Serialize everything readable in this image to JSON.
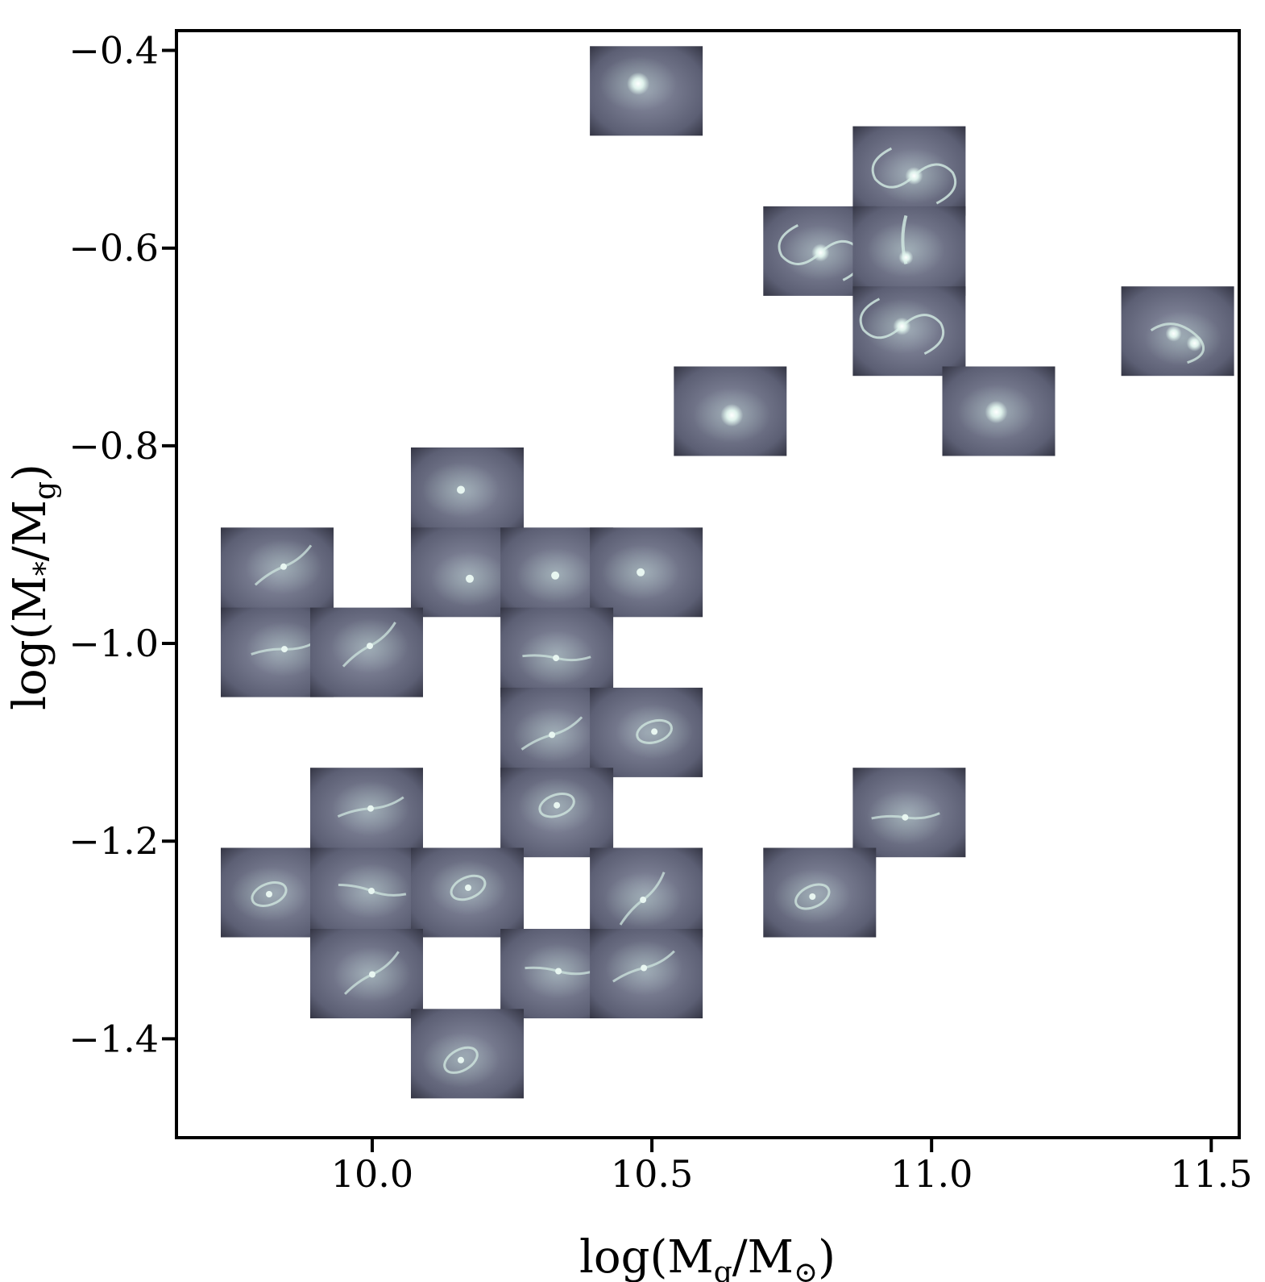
{
  "chart_data": {
    "type": "scatter",
    "title": "",
    "xlabel": "log(M_g/M_⊙)",
    "ylabel": "log(M_*/M_g)",
    "xlim": [
      9.65,
      11.55
    ],
    "ylim": [
      -1.5,
      -0.38
    ],
    "x_ticks": [
      10.0,
      10.5,
      11.0,
      11.5
    ],
    "y_ticks": [
      -0.4,
      -0.6,
      -0.8,
      -1.0,
      -1.2,
      -1.4
    ],
    "x_tick_labels": [
      "10.0",
      "10.5",
      "11.0",
      "11.5"
    ],
    "y_tick_labels": [
      "−0.4",
      "−0.6",
      "−0.8",
      "−1.0",
      "−1.2",
      "−1.4"
    ],
    "grid": false,
    "legend": "none",
    "marker": "galaxy thumbnail image",
    "points": [
      {
        "x": 10.49,
        "y": -0.441,
        "kind": "compact"
      },
      {
        "x": 10.96,
        "y": -0.522,
        "kind": "spiral"
      },
      {
        "x": 10.8,
        "y": -0.603,
        "kind": "spiral"
      },
      {
        "x": 10.96,
        "y": -0.603,
        "kind": "bar"
      },
      {
        "x": 10.96,
        "y": -0.684,
        "kind": "spiral"
      },
      {
        "x": 11.44,
        "y": -0.684,
        "kind": "merger"
      },
      {
        "x": 10.64,
        "y": -0.765,
        "kind": "compact"
      },
      {
        "x": 11.12,
        "y": -0.765,
        "kind": "compact"
      },
      {
        "x": 10.17,
        "y": -0.847,
        "kind": "faint"
      },
      {
        "x": 9.83,
        "y": -0.928,
        "kind": "filament"
      },
      {
        "x": 10.17,
        "y": -0.928,
        "kind": "faint"
      },
      {
        "x": 10.33,
        "y": -0.928,
        "kind": "faint"
      },
      {
        "x": 10.49,
        "y": -0.928,
        "kind": "faint"
      },
      {
        "x": 9.83,
        "y": -1.009,
        "kind": "filament"
      },
      {
        "x": 9.99,
        "y": -1.009,
        "kind": "filament"
      },
      {
        "x": 10.33,
        "y": -1.009,
        "kind": "filament"
      },
      {
        "x": 10.33,
        "y": -1.09,
        "kind": "filament"
      },
      {
        "x": 10.49,
        "y": -1.09,
        "kind": "ring"
      },
      {
        "x": 9.99,
        "y": -1.171,
        "kind": "filament"
      },
      {
        "x": 10.33,
        "y": -1.171,
        "kind": "ring"
      },
      {
        "x": 10.96,
        "y": -1.171,
        "kind": "filament"
      },
      {
        "x": 9.83,
        "y": -1.252,
        "kind": "ring"
      },
      {
        "x": 9.99,
        "y": -1.252,
        "kind": "filament"
      },
      {
        "x": 10.17,
        "y": -1.252,
        "kind": "ring"
      },
      {
        "x": 10.49,
        "y": -1.252,
        "kind": "filament"
      },
      {
        "x": 10.8,
        "y": -1.252,
        "kind": "ring"
      },
      {
        "x": 9.99,
        "y": -1.334,
        "kind": "filament"
      },
      {
        "x": 10.33,
        "y": -1.334,
        "kind": "filament"
      },
      {
        "x": 10.49,
        "y": -1.334,
        "kind": "filament"
      },
      {
        "x": 10.17,
        "y": -1.415,
        "kind": "ring"
      }
    ]
  }
}
